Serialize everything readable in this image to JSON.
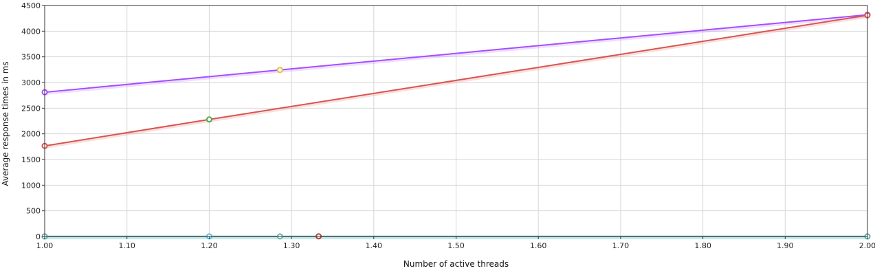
{
  "chart_data": {
    "type": "line",
    "title": "",
    "xlabel": "Number of active threads",
    "ylabel": "Average response times in ms",
    "xlim": [
      1.0,
      2.0
    ],
    "ylim": [
      0,
      4500
    ],
    "x_ticks": [
      "1.00",
      "1.10",
      "1.20",
      "1.30",
      "1.40",
      "1.50",
      "1.60",
      "1.70",
      "1.80",
      "1.90",
      "2.00"
    ],
    "y_ticks": [
      "0",
      "500",
      "1000",
      "1500",
      "2000",
      "2500",
      "3000",
      "3500",
      "4000",
      "4500"
    ],
    "grid": true,
    "legend": "none",
    "series": [
      {
        "color": "#a64dff",
        "points": [
          {
            "x": 1.0,
            "y": 2810
          },
          {
            "x": 1.286,
            "y": 3245
          },
          {
            "x": 2.0,
            "y": 4320
          }
        ]
      },
      {
        "color": "#d9534f",
        "points": [
          {
            "x": 1.0,
            "y": 1765
          },
          {
            "x": 1.2,
            "y": 2280
          },
          {
            "x": 2.0,
            "y": 4310
          }
        ]
      },
      {
        "color": "#5bc0de",
        "points": [
          {
            "x": 1.0,
            "y": 2
          },
          {
            "x": 1.2,
            "y": 2
          },
          {
            "x": 2.0,
            "y": 2
          }
        ]
      },
      {
        "color": "#6cb3a8",
        "points": [
          {
            "x": 1.0,
            "y": 1
          },
          {
            "x": 1.286,
            "y": 1
          },
          {
            "x": 2.0,
            "y": 1
          }
        ]
      },
      {
        "color": "#a94442",
        "points": [
          {
            "x": 1.333,
            "y": 3
          }
        ]
      }
    ],
    "marker_colors": {
      "purple_mid": "#e0c040",
      "red_mid": "#4cae4c"
    }
  }
}
